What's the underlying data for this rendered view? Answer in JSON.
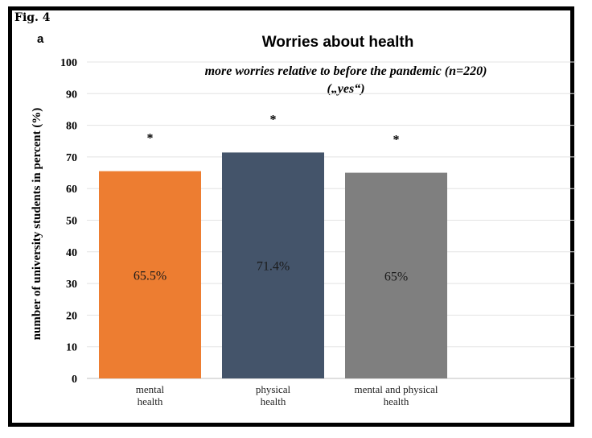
{
  "figure": {
    "fig_label": "Fig. 4",
    "panel_label": "a"
  },
  "chart_data": {
    "type": "bar",
    "title": "Worries about health",
    "subtitle": "more worries relative to before the pandemic (n=220)",
    "subtitle_line2": "(„yes“)",
    "xlabel": "",
    "ylabel": "number of university students in percent (%)",
    "ylim": [
      0,
      100
    ],
    "yticks": [
      0,
      10,
      20,
      30,
      40,
      50,
      60,
      70,
      80,
      90,
      100
    ],
    "grid": true,
    "categories": [
      "mental health",
      "physical health",
      "mental and physical health"
    ],
    "category_lines": [
      [
        "mental",
        "health"
      ],
      [
        "physical",
        "health"
      ],
      [
        "mental and physical",
        "health"
      ]
    ],
    "values": [
      65.5,
      71.4,
      65
    ],
    "data_labels": [
      "65.5%",
      "71.4%",
      "65%"
    ],
    "significance_markers": [
      "*",
      "*",
      "*"
    ],
    "colors": [
      "#ED7D31",
      "#44546A",
      "#7F7F7F"
    ]
  }
}
